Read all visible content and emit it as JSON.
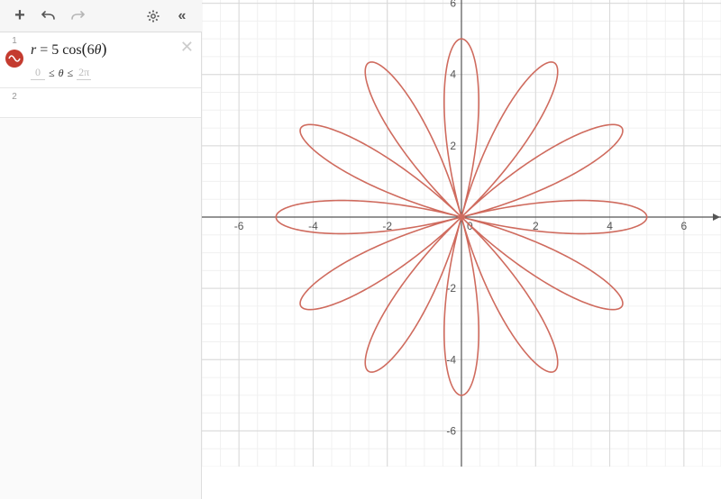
{
  "toolbar": {
    "add_label": "+",
    "undo_label": "↶",
    "redo_label": "↷",
    "settings_label": "⚙",
    "collapse_label": "«"
  },
  "expressions": [
    {
      "index": "1",
      "formula_html": "r = 5 cos(6θ)",
      "formula_r": "r",
      "formula_eq": " = ",
      "formula_coef": "5",
      "formula_fn": " cos",
      "formula_lp": "(",
      "formula_inner_coef": "6",
      "formula_var": "θ",
      "formula_rp": ")",
      "domain_min": "0",
      "domain_le1": "≤",
      "domain_var": "θ",
      "domain_le2": "≤",
      "domain_max": "2π",
      "curve_color": "#c43b2f"
    },
    {
      "index": "2"
    }
  ],
  "graph": {
    "type": "polar-rose",
    "equation": "r = 5cos(6θ)",
    "amplitude": 5,
    "frequency": 6,
    "theta_min": 0,
    "theta_max": 6.283185307,
    "xlim": [
      -7,
      7
    ],
    "ylim": [
      -7,
      7
    ],
    "xticks": [
      -6,
      -4,
      -2,
      0,
      2,
      4,
      6
    ],
    "yticks": [
      -6,
      -4,
      -2,
      2,
      4,
      6
    ],
    "minor_grid_step": 0.5,
    "major_grid_step": 2,
    "curve_color": "#cf6b5e",
    "curve_width": 1.6,
    "background_color": "#ffffff",
    "minor_grid_color": "#f0f0f0",
    "major_grid_color": "#d8d8d8",
    "axis_color": "#555555",
    "tick_label_color": "#555555",
    "tick_fontsize": 12
  }
}
